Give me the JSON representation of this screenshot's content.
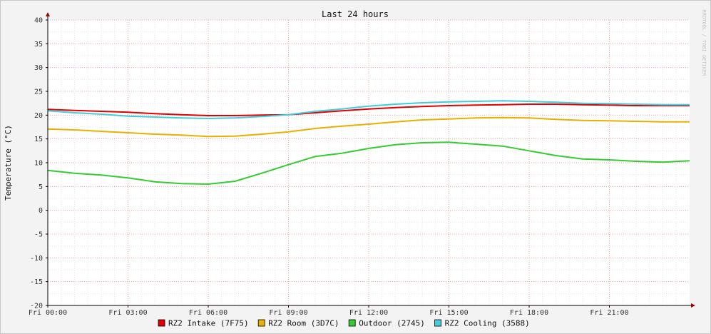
{
  "chart_data": {
    "type": "line",
    "title": "Last 24 hours",
    "ylabel": "Temperature (°C)",
    "watermark": "RRDTOOL / TOBI OETIKER",
    "ylim": [
      -20,
      40
    ],
    "yticks": [
      40,
      35,
      30,
      25,
      20,
      15,
      10,
      5,
      0,
      -5,
      -10,
      -15,
      -20
    ],
    "xlim": [
      0,
      24
    ],
    "xtick_labels": [
      "Fri 00:00",
      "Fri 03:00",
      "Fri 06:00",
      "Fri 09:00",
      "Fri 12:00",
      "Fri 15:00",
      "Fri 18:00",
      "Fri 21:00"
    ],
    "xtick_hours": [
      0,
      3,
      6,
      9,
      12,
      15,
      18,
      21
    ],
    "grid": true,
    "legend_position": "bottom",
    "x": [
      0,
      1,
      2,
      3,
      4,
      5,
      6,
      7,
      8,
      9,
      10,
      11,
      12,
      13,
      14,
      15,
      16,
      17,
      18,
      19,
      20,
      21,
      22,
      23,
      24
    ],
    "series": [
      {
        "name": "RZ2 Intake (7F75)",
        "color": "#e00000",
        "values": [
          21.2,
          21.0,
          20.8,
          20.6,
          20.3,
          20.1,
          19.9,
          19.9,
          20.0,
          20.1,
          20.5,
          20.9,
          21.3,
          21.6,
          21.8,
          22.0,
          22.1,
          22.2,
          22.3,
          22.3,
          22.2,
          22.1,
          22.0,
          22.0,
          22.0
        ]
      },
      {
        "name": "RZ2 Room (3D7C)",
        "color": "#e8b000",
        "values": [
          17.1,
          16.9,
          16.6,
          16.3,
          16.0,
          15.8,
          15.5,
          15.6,
          16.0,
          16.5,
          17.2,
          17.7,
          18.1,
          18.6,
          19.0,
          19.2,
          19.4,
          19.5,
          19.4,
          19.1,
          18.9,
          18.8,
          18.7,
          18.6,
          18.6
        ]
      },
      {
        "name": "Outdoor (2745)",
        "color": "#33cc33",
        "values": [
          8.4,
          7.8,
          7.4,
          6.8,
          6.0,
          5.6,
          5.5,
          6.1,
          7.8,
          9.6,
          11.3,
          12.0,
          13.0,
          13.8,
          14.2,
          14.3,
          13.9,
          13.5,
          12.5,
          11.5,
          10.8,
          10.6,
          10.3,
          10.1,
          10.4
        ]
      },
      {
        "name": "RZ2 Cooling (3588)",
        "color": "#44ccdd",
        "values": [
          20.9,
          20.5,
          20.2,
          19.8,
          19.6,
          19.4,
          19.3,
          19.4,
          19.7,
          20.1,
          20.8,
          21.3,
          21.9,
          22.3,
          22.6,
          22.8,
          22.9,
          23.0,
          22.9,
          22.7,
          22.5,
          22.4,
          22.3,
          22.2,
          22.2
        ]
      }
    ]
  }
}
